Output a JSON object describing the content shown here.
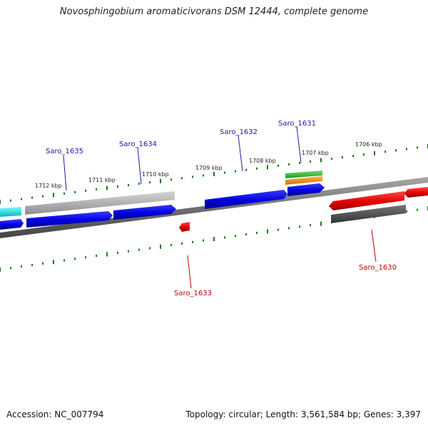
{
  "title": "Novosphingobium aromaticivorans DSM 12444, complete genome",
  "footer": {
    "accession": "Accession: NC_007794",
    "summary": "Topology: circular; Length: 3,561,584 bp; Genes: 3,397"
  },
  "scale_labels": [
    "1712 kbp",
    "1711 kbp",
    "1710 kbp",
    "1709 kbp",
    "1708 kbp",
    "1707 kbp",
    "1706 kbp"
  ],
  "gene_labels_top": [
    "Saro_1635",
    "Saro_1634",
    "Saro_1632",
    "Saro_1631"
  ],
  "gene_labels_bottom": [
    "Saro_1633",
    "Saro_1630"
  ],
  "colors": {
    "forward_gene": "#0000e6",
    "reverse_gene": "#e60000",
    "backbone": "#777777",
    "scale_ticks": "#1a7a1a",
    "label_top": "#1a1aa8",
    "label_bottom": "#c40000",
    "cyan_gene": "#00e5e5",
    "green_gene": "#2ec22e",
    "orange_gene": "#f08c00",
    "light_gray_gene": "#b8b8b8",
    "dark_gray_gene": "#555555"
  }
}
